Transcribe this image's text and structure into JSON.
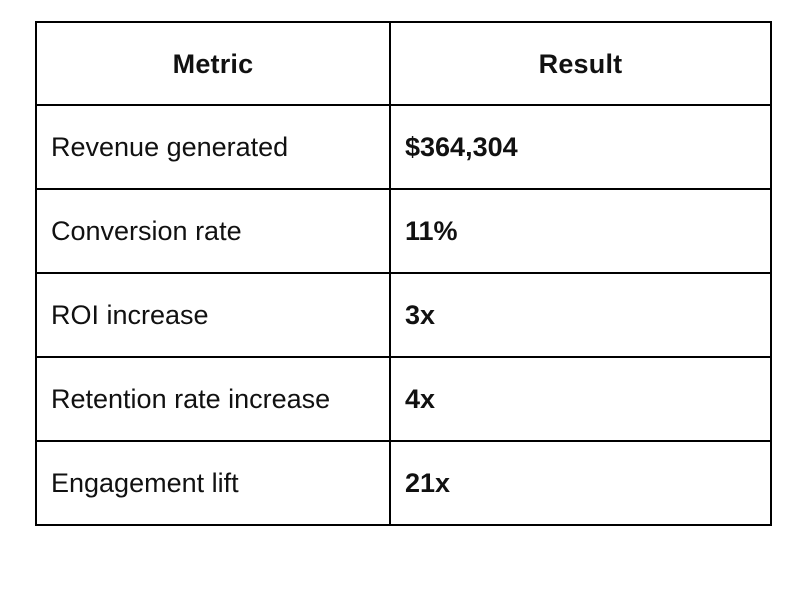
{
  "chart_data": {
    "type": "table",
    "columns": [
      "Metric",
      "Result"
    ],
    "rows": [
      [
        "Revenue generated",
        "$364,304"
      ],
      [
        "Conversion rate",
        "11%"
      ],
      [
        "ROI increase",
        "3x"
      ],
      [
        "Retention rate increase",
        "4x"
      ],
      [
        "Engagement lift",
        "21x"
      ]
    ],
    "layout": {
      "grid": "full-borders",
      "header_align": "center",
      "body_align": "left",
      "result_column_bold": true
    }
  },
  "colors": {
    "border": "#000000",
    "text": "#111111",
    "background": "#ffffff"
  }
}
